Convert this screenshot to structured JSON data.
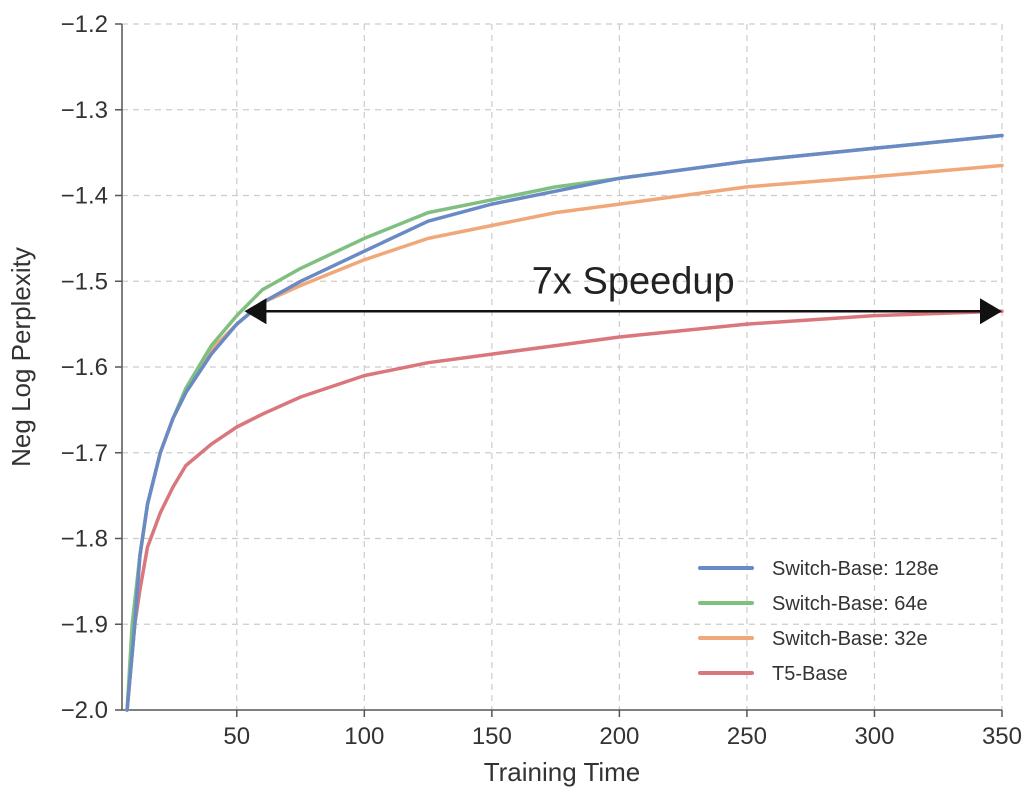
{
  "chart_data": {
    "type": "line",
    "title": "",
    "xlabel": "Training Time",
    "ylabel": "Neg Log Perplexity",
    "xlim": [
      5,
      350
    ],
    "ylim": [
      -2.0,
      -1.2
    ],
    "xticks": [
      50,
      100,
      150,
      200,
      250,
      300,
      350
    ],
    "xtick_labels": [
      "50",
      "100",
      "150",
      "200",
      "250",
      "300",
      "350"
    ],
    "yticks": [
      -2.0,
      -1.9,
      -1.8,
      -1.7,
      -1.6,
      -1.5,
      -1.4,
      -1.3,
      -1.2
    ],
    "ytick_labels": [
      "−2.0",
      "−1.9",
      "−1.8",
      "−1.7",
      "−1.6",
      "−1.5",
      "−1.4",
      "−1.3",
      "−1.2"
    ],
    "grid": true,
    "legend_position": "bottom-right",
    "series": [
      {
        "name": "Switch-Base: 128e",
        "color": "#6a8ac5",
        "x": [
          7,
          10,
          12,
          15,
          20,
          25,
          30,
          40,
          50,
          60,
          75,
          100,
          125,
          150,
          175,
          200,
          250,
          300,
          350
        ],
        "y": [
          -2.0,
          -1.9,
          -1.82,
          -1.76,
          -1.7,
          -1.66,
          -1.63,
          -1.585,
          -1.55,
          -1.525,
          -1.5,
          -1.465,
          -1.43,
          -1.41,
          -1.395,
          -1.38,
          -1.36,
          -1.345,
          -1.33
        ]
      },
      {
        "name": "Switch-Base: 64e",
        "color": "#7fbf7f",
        "x": [
          7,
          9,
          12,
          15,
          20,
          25,
          30,
          40,
          50,
          60,
          75,
          100,
          125,
          150,
          175,
          200,
          250,
          300,
          350
        ],
        "y": [
          -2.0,
          -1.9,
          -1.82,
          -1.76,
          -1.7,
          -1.66,
          -1.625,
          -1.575,
          -1.54,
          -1.51,
          -1.485,
          -1.45,
          -1.42,
          -1.405,
          -1.39,
          -1.38,
          -1.36,
          -1.345,
          -1.33
        ]
      },
      {
        "name": "Switch-Base: 32e",
        "color": "#f0a87a",
        "x": [
          7,
          10,
          12,
          15,
          20,
          25,
          30,
          40,
          50,
          60,
          75,
          100,
          125,
          150,
          175,
          200,
          250,
          300,
          350
        ],
        "y": [
          -2.0,
          -1.9,
          -1.82,
          -1.76,
          -1.7,
          -1.66,
          -1.63,
          -1.58,
          -1.55,
          -1.525,
          -1.505,
          -1.475,
          -1.45,
          -1.435,
          -1.42,
          -1.41,
          -1.39,
          -1.378,
          -1.365
        ]
      },
      {
        "name": "T5-Base",
        "color": "#d9777c",
        "x": [
          7,
          10,
          12,
          15,
          20,
          25,
          30,
          40,
          50,
          60,
          75,
          100,
          125,
          150,
          175,
          200,
          250,
          300,
          350
        ],
        "y": [
          -2.0,
          -1.9,
          -1.86,
          -1.81,
          -1.77,
          -1.74,
          -1.715,
          -1.69,
          -1.67,
          -1.655,
          -1.635,
          -1.61,
          -1.595,
          -1.585,
          -1.575,
          -1.565,
          -1.55,
          -1.54,
          -1.535
        ]
      }
    ],
    "annotations": [
      {
        "text": "7x Speedup",
        "arrow_from": {
          "x": 53,
          "y": -1.535
        },
        "arrow_to": {
          "x": 350,
          "y": -1.535
        }
      }
    ]
  }
}
